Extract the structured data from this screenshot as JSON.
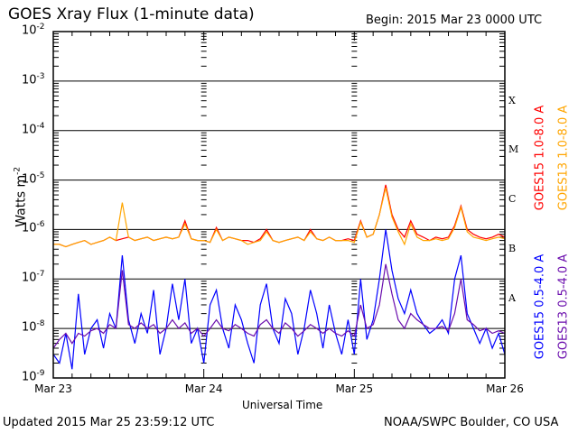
{
  "chart_data": {
    "type": "line",
    "title": "GOES Xray Flux (1-minute data)",
    "begin": "Begin:  2015 Mar 23 0000 UTC",
    "ylabel": "Watts m",
    "ylabel_sup": "-2",
    "xlabel": "Universal Time",
    "yscale": "log",
    "ylim": [
      1e-09,
      0.01
    ],
    "ytick_labels": [
      {
        "base": "10",
        "exp": "-2"
      },
      {
        "base": "10",
        "exp": "-3"
      },
      {
        "base": "10",
        "exp": "-4"
      },
      {
        "base": "10",
        "exp": "-5"
      },
      {
        "base": "10",
        "exp": "-6"
      },
      {
        "base": "10",
        "exp": "-7"
      },
      {
        "base": "10",
        "exp": "-8"
      },
      {
        "base": "10",
        "exp": "-9"
      }
    ],
    "xlim_hours": [
      0,
      72
    ],
    "xtick_labels": [
      "Mar 23",
      "Mar 24",
      "Mar 25",
      "Mar 26"
    ],
    "flare_classes": [
      {
        "label": "X",
        "value": 0.0003
      },
      {
        "label": "M",
        "value": 3e-05
      },
      {
        "label": "C",
        "value": 3e-06
      },
      {
        "label": "B",
        "value": 3e-07
      },
      {
        "label": "A",
        "value": 3e-08
      }
    ],
    "x_hours": [
      0,
      1,
      2,
      3,
      4,
      5,
      6,
      7,
      8,
      9,
      10,
      11,
      12,
      13,
      14,
      15,
      16,
      17,
      18,
      19,
      20,
      21,
      22,
      23,
      24,
      25,
      26,
      27,
      28,
      29,
      30,
      31,
      32,
      33,
      34,
      35,
      36,
      37,
      38,
      39,
      40,
      41,
      42,
      43,
      44,
      45,
      46,
      47,
      48,
      49,
      50,
      51,
      52,
      53,
      54,
      55,
      56,
      57,
      58,
      59,
      60,
      61,
      62,
      63,
      64,
      65,
      66,
      67,
      68,
      69,
      70,
      71,
      72
    ],
    "series": [
      {
        "name": "GOES15 1.0-8.0 A",
        "color": "#ff0000",
        "values": [
          5e-07,
          5e-07,
          4.5e-07,
          5e-07,
          5.5e-07,
          6e-07,
          5e-07,
          5.5e-07,
          6e-07,
          7e-07,
          6e-07,
          6.5e-07,
          7e-07,
          6e-07,
          6.5e-07,
          7e-07,
          6e-07,
          6.5e-07,
          7e-07,
          6.5e-07,
          7e-07,
          1.5e-06,
          6.5e-07,
          6e-07,
          6e-07,
          5.5e-07,
          1.1e-06,
          6e-07,
          7e-07,
          6.5e-07,
          6e-07,
          6e-07,
          5.5e-07,
          6.5e-07,
          1e-06,
          6e-07,
          5.5e-07,
          6e-07,
          6.5e-07,
          7e-07,
          6e-07,
          1e-06,
          6.5e-07,
          6e-07,
          7e-07,
          6e-07,
          6e-07,
          6.5e-07,
          6e-07,
          1.5e-06,
          7e-07,
          8e-07,
          2e-06,
          8e-06,
          2e-06,
          1e-06,
          7e-07,
          1.5e-06,
          8e-07,
          7e-07,
          6e-07,
          7e-07,
          6.5e-07,
          7e-07,
          1.2e-06,
          3e-06,
          1e-06,
          8e-07,
          7e-07,
          6.5e-07,
          7e-07,
          8e-07,
          7e-07
        ]
      },
      {
        "name": "GOES13 1.0-8.0 A",
        "color": "#ffa500",
        "values": [
          5e-07,
          5e-07,
          4.5e-07,
          5e-07,
          5.5e-07,
          6e-07,
          5e-07,
          5.5e-07,
          6e-07,
          7e-07,
          6e-07,
          3.5e-06,
          7e-07,
          6e-07,
          6.5e-07,
          7e-07,
          6e-07,
          6.5e-07,
          7e-07,
          6.5e-07,
          7e-07,
          1.3e-06,
          6.5e-07,
          6e-07,
          6e-07,
          5.5e-07,
          1e-06,
          6e-07,
          7e-07,
          6.5e-07,
          6e-07,
          5e-07,
          5.5e-07,
          6e-07,
          9e-07,
          6e-07,
          5.5e-07,
          6e-07,
          6.5e-07,
          7e-07,
          6e-07,
          9e-07,
          6.5e-07,
          6e-07,
          7e-07,
          6e-07,
          6e-07,
          6e-07,
          5.5e-07,
          1.4e-06,
          7e-07,
          8e-07,
          2e-06,
          7e-06,
          1.8e-06,
          9e-07,
          5e-07,
          1.3e-06,
          7e-07,
          6e-07,
          6e-07,
          6.5e-07,
          6e-07,
          6.5e-07,
          1.1e-06,
          2.8e-06,
          9e-07,
          7e-07,
          6.5e-07,
          6e-07,
          6.5e-07,
          7e-07,
          6.5e-07
        ]
      },
      {
        "name": "GOES15 0.5-4.0 A",
        "color": "#0000ff",
        "values": [
          3e-09,
          2e-09,
          8e-09,
          1.5e-09,
          5e-08,
          3e-09,
          1e-08,
          1.5e-08,
          4e-09,
          2e-08,
          1e-08,
          3e-07,
          1.5e-08,
          5e-09,
          2e-08,
          8e-09,
          6e-08,
          3e-09,
          1e-08,
          8e-08,
          1.5e-08,
          1e-07,
          5e-09,
          1e-08,
          2e-09,
          3e-08,
          6e-08,
          1e-08,
          4e-09,
          3e-08,
          1.5e-08,
          5e-09,
          2e-09,
          3e-08,
          8e-08,
          1e-08,
          5e-09,
          4e-08,
          2e-08,
          3e-09,
          1e-08,
          6e-08,
          2e-08,
          4e-09,
          3e-08,
          8e-09,
          3e-09,
          1.5e-08,
          3e-09,
          1e-07,
          6e-09,
          1.5e-08,
          1e-07,
          1e-06,
          1.5e-07,
          4e-08,
          2e-08,
          6e-08,
          2e-08,
          1.2e-08,
          8e-09,
          1e-08,
          1.5e-08,
          8e-09,
          1e-07,
          3e-07,
          2e-08,
          1e-08,
          5e-09,
          1e-08,
          4e-09,
          8e-09,
          3e-09
        ]
      },
      {
        "name": "GOES13 0.5-4.0 A",
        "color": "#6a0dad",
        "values": [
          4e-09,
          6e-09,
          8e-09,
          5e-09,
          8e-09,
          7e-09,
          9e-09,
          1e-08,
          8e-09,
          1.2e-08,
          1e-08,
          1.5e-07,
          1.2e-08,
          1e-08,
          1.3e-08,
          1e-08,
          1.2e-08,
          8e-09,
          1e-08,
          1.5e-08,
          1e-08,
          1.3e-08,
          8e-09,
          1e-08,
          7e-09,
          1e-08,
          1.5e-08,
          1e-08,
          9e-09,
          1.2e-08,
          1e-08,
          8e-09,
          7e-09,
          1.2e-08,
          1.5e-08,
          1e-08,
          8e-09,
          1.3e-08,
          1e-08,
          7e-09,
          9e-09,
          1.2e-08,
          1e-08,
          8e-09,
          1e-08,
          8e-09,
          7e-09,
          9e-09,
          7e-09,
          3e-08,
          1e-08,
          1.2e-08,
          3e-08,
          2e-07,
          5e-08,
          1.5e-08,
          1e-08,
          2e-08,
          1.5e-08,
          1.2e-08,
          1e-08,
          1e-08,
          1.1e-08,
          9e-09,
          2e-08,
          1e-07,
          1.5e-08,
          1.2e-08,
          9e-09,
          1e-08,
          8e-09,
          9e-09,
          8e-09
        ]
      }
    ]
  },
  "footer": {
    "updated": "Updated 2015 Mar 25 23:59:12 UTC",
    "source": "NOAA/SWPC Boulder, CO USA"
  }
}
